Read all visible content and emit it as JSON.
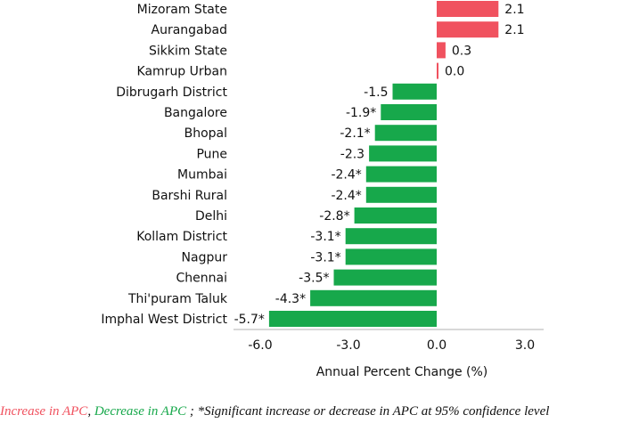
{
  "chart_data": {
    "type": "bar",
    "orientation": "horizontal",
    "categories": [
      "Mizoram State",
      "Aurangabad",
      "Sikkim State",
      "Kamrup Urban",
      "Dibrugarh District",
      "Bangalore",
      "Bhopal",
      "Pune",
      "Mumbai",
      "Barshi Rural",
      "Delhi",
      "Kollam District",
      "Nagpur",
      "Chennai",
      "Thi'puram Taluk",
      "Imphal West District"
    ],
    "values": [
      2.1,
      2.1,
      0.3,
      0.0,
      -1.5,
      -1.9,
      -2.1,
      -2.3,
      -2.4,
      -2.4,
      -2.8,
      -3.1,
      -3.1,
      -3.5,
      -4.3,
      -5.7
    ],
    "value_labels": [
      "2.1",
      "2.1",
      "0.3",
      "0.0",
      "-1.5",
      "-1.9*",
      "-2.1*",
      "-2.3",
      "-2.4*",
      "-2.4*",
      "-2.8*",
      "-3.1*",
      "-3.1*",
      "-3.5*",
      "-4.3*",
      "-5.7*"
    ],
    "xlabel": "Annual Percent Change (%)",
    "ylabel": "",
    "xlim": [
      -6.5,
      3.8
    ],
    "xticks": [
      -6.0,
      -3.0,
      0.0,
      3.0
    ],
    "xtick_labels": [
      "-6.0",
      "-3.0",
      "0.0",
      "3.0"
    ],
    "grid": false,
    "colors": {
      "increase": "#f0525f",
      "decrease": "#17a84b"
    }
  },
  "caption": {
    "increase_text": "Increase in APC",
    "separator_1": ", ",
    "decrease_text": "Decrease in APC",
    "separator_2": " ; ",
    "note_text": "*Significant increase or decrease in APC at 95% confidence level",
    "increase_color": "#f0525f",
    "decrease_color": "#17a84b"
  }
}
